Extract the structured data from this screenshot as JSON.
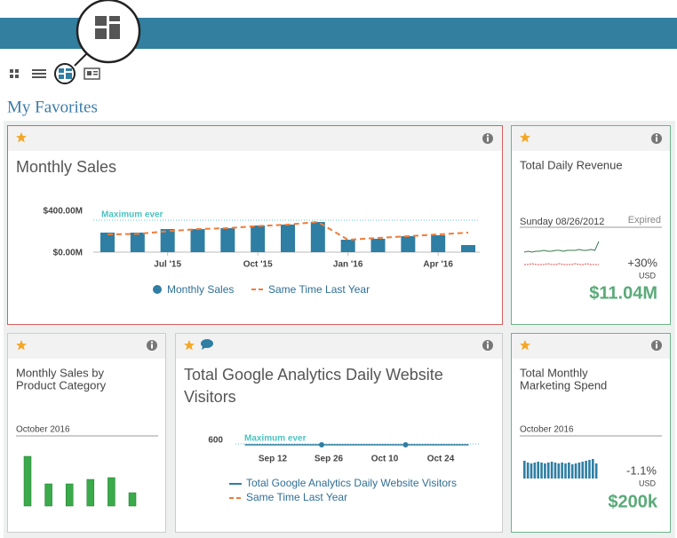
{
  "page_title": "My Favorites",
  "widgets": [
    {
      "title": "Monthly Sales",
      "chart_data": {
        "type": "bar",
        "categories": [
          null,
          null,
          "Jul '15",
          null,
          null,
          "Oct '15",
          null,
          null,
          "Jan '16",
          null,
          null,
          "Apr '16",
          null
        ],
        "series": [
          {
            "name": "Monthly Sales",
            "color": "#2f7ea3",
            "values": [
              187,
              187,
              221,
              221,
              230,
              255,
              264,
              289,
              119,
              128,
              153,
              162,
              68
            ]
          },
          {
            "name": "Same Time Last Year",
            "color": "#f07c3a",
            "values": [
              170,
              175,
              200,
              221,
              230,
              250,
              264,
              289,
              119,
              136,
              153,
              170,
              187
            ]
          }
        ],
        "reference": {
          "label": "Maximum ever",
          "value": 306
        },
        "ylim": [
          0,
          400
        ],
        "yticks": [
          {
            "value": 400,
            "label": "$400.00M"
          },
          {
            "value": 0,
            "label": "$0.00M"
          }
        ]
      }
    },
    {
      "title": "Total Daily Revenue",
      "date": "Sunday 08/26/2012",
      "status": "Expired",
      "change": "+30%",
      "currency": "USD",
      "amount": "$11.04M",
      "chart_data": {
        "type": "line",
        "series": [
          {
            "color": "#3d7a4f",
            "values": [
              16,
              17,
              16,
              17,
              17,
              18,
              17,
              17,
              18,
              18,
              17,
              18,
              18,
              18,
              19,
              18,
              18,
              19,
              18,
              28
            ]
          },
          {
            "color": "#d9534f",
            "values": [
              2,
              2,
              3,
              2,
              2,
              2,
              3,
              2,
              2,
              3,
              2,
              2,
              2,
              3,
              2,
              2,
              3,
              2,
              2,
              2
            ]
          }
        ]
      }
    },
    {
      "title_lines": [
        "Monthly Sales by",
        "Product Category"
      ],
      "period": "October 2016",
      "chart_data": {
        "type": "bar",
        "color": "#3aaa4a",
        "values": [
          56,
          25,
          25,
          30,
          32,
          15
        ]
      }
    },
    {
      "title_lines": [
        "Total Google Analytics Daily Website",
        "Visitors"
      ],
      "chart_data": {
        "type": "line",
        "categories": [
          null,
          "Sep 12",
          null,
          "Sep 26",
          null,
          "Oct 10",
          null,
          "Oct 24",
          null
        ],
        "series": [
          {
            "name": "Total Google Analytics Daily Website Visitors",
            "color": "#2f7ea3",
            "values": [
              600,
              600,
              600,
              600,
              600,
              600,
              600,
              600,
              600
            ]
          },
          {
            "name": "Same Time Last Year",
            "color": "#f07c3a"
          }
        ],
        "reference": {
          "label": "Maximum ever"
        },
        "yticks": [
          600
        ]
      }
    },
    {
      "title_lines": [
        "Total Monthly",
        "Marketing Spend"
      ],
      "period": "October 2016",
      "change": "-1.1%",
      "currency": "USD",
      "amount": "$200k",
      "chart_data": {
        "type": "bar",
        "color": "#2f7ea3",
        "values": [
          20,
          18,
          17,
          18,
          19,
          18,
          17,
          18,
          19,
          18,
          17,
          18,
          17,
          18,
          16,
          17,
          18,
          19,
          20,
          21,
          22,
          17
        ]
      }
    }
  ]
}
